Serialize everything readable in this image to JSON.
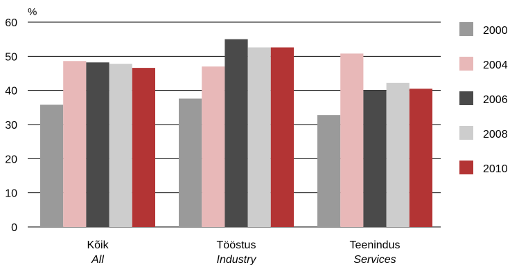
{
  "chart_data": {
    "type": "bar",
    "unit_label": "%",
    "categories": [
      {
        "et": "Kõik",
        "en": "All"
      },
      {
        "et": "Tööstus",
        "en": "Industry"
      },
      {
        "et": "Teenindus",
        "en": "Services"
      }
    ],
    "series": [
      {
        "name": "2000",
        "color": "#9a9a9a",
        "values": [
          35.8,
          37.6,
          32.8
        ]
      },
      {
        "name": "2004",
        "color": "#e8b8b8",
        "values": [
          48.6,
          47.0,
          50.8
        ]
      },
      {
        "name": "2006",
        "color": "#4a4a4a",
        "values": [
          48.2,
          55.0,
          40.0
        ]
      },
      {
        "name": "2008",
        "color": "#cdcdcd",
        "values": [
          47.8,
          52.6,
          42.2
        ]
      },
      {
        "name": "2010",
        "color": "#b33434",
        "values": [
          46.6,
          52.6,
          40.5
        ]
      }
    ],
    "ylim": [
      0,
      60
    ],
    "yticks": [
      "0",
      "10",
      "20",
      "30",
      "40",
      "50",
      "60"
    ],
    "grid": true,
    "legend_position": "right"
  }
}
